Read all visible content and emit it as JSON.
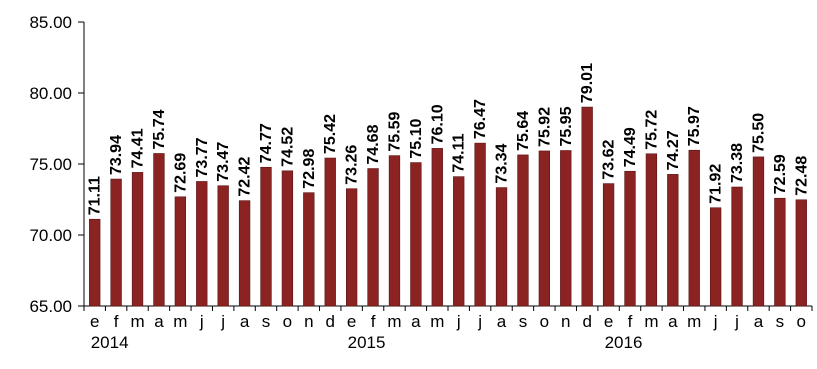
{
  "chart_data": {
    "type": "bar",
    "months": [
      "e",
      "f",
      "m",
      "a",
      "m",
      "j",
      "j",
      "a",
      "s",
      "o",
      "n",
      "d",
      "e",
      "f",
      "m",
      "a",
      "m",
      "j",
      "j",
      "a",
      "s",
      "o",
      "n",
      "d",
      "e",
      "f",
      "m",
      "a",
      "m",
      "j",
      "j",
      "a",
      "s",
      "o"
    ],
    "years": [
      "2014",
      "2015",
      "2016"
    ],
    "values": [
      71.11,
      73.94,
      74.41,
      75.74,
      72.69,
      73.77,
      73.47,
      72.42,
      74.77,
      74.52,
      72.98,
      75.42,
      73.26,
      74.68,
      75.59,
      75.1,
      76.1,
      74.11,
      76.47,
      73.34,
      75.64,
      75.92,
      75.95,
      79.01,
      73.62,
      74.49,
      75.72,
      74.27,
      75.97,
      71.92,
      73.38,
      75.5,
      72.59,
      72.48
    ],
    "value_labels": [
      "71.11",
      "73.94",
      "74.41",
      "75.74",
      "72.69",
      "73.77",
      "73.47",
      "72.42",
      "74.77",
      "74.52",
      "72.98",
      "75.42",
      "73.26",
      "74.68",
      "75.59",
      "75.10",
      "76.10",
      "74.11",
      "76.47",
      "73.34",
      "75.64",
      "75.92",
      "75.95",
      "79.01",
      "73.62",
      "74.49",
      "75.72",
      "74.27",
      "75.97",
      "71.92",
      "73.38",
      "75.50",
      "72.59",
      "72.48"
    ],
    "y_ticks": [
      "65.00",
      "70.00",
      "75.00",
      "80.00",
      "85.00"
    ],
    "ylim": [
      65,
      85
    ],
    "bar_color": "#8B2323",
    "grid": false,
    "legend": "none"
  }
}
